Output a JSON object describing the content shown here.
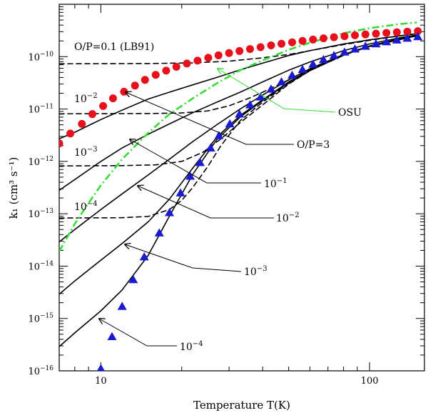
{
  "chart_data": {
    "type": "line",
    "title": "",
    "xlabel": "Temperature T(K)",
    "ylabel": "k₁ (cm³ s⁻¹)",
    "xscale": "log",
    "yscale": "log",
    "xlim": [
      7,
      160
    ],
    "ylim": [
      1e-16,
      1e-09
    ],
    "x_major_ticks": [
      {
        "value": 10,
        "label": "10"
      },
      {
        "value": 100,
        "label": "100"
      }
    ],
    "y_major_ticks": [
      {
        "value": 1e-16,
        "base": "10",
        "exp": "−16"
      },
      {
        "value": 1e-15,
        "base": "10",
        "exp": "−15"
      },
      {
        "value": 1e-14,
        "base": "10",
        "exp": "−14"
      },
      {
        "value": 1e-13,
        "base": "10",
        "exp": "−13"
      },
      {
        "value": 1e-12,
        "base": "10",
        "exp": "−12"
      },
      {
        "value": 1e-11,
        "base": "10",
        "exp": "−11"
      },
      {
        "value": 1e-10,
        "base": "10",
        "exp": "−10"
      }
    ],
    "series": [
      {
        "name": "total O/P=3",
        "style": "solid",
        "color": "#000000",
        "x": [
          7,
          8,
          10,
          12,
          15,
          18,
          22,
          27,
          33,
          40,
          50,
          60,
          80,
          100,
          130,
          150
        ],
        "y": [
          2.7e-12,
          3.6e-12,
          6.3e-12,
          9.5e-12,
          1.55e-11,
          2.1e-11,
          2.9e-11,
          4e-11,
          5.6e-11,
          7.5e-11,
          1.05e-10,
          1.3e-10,
          1.75e-10,
          2.1e-10,
          2.5e-10,
          2.75e-10
        ]
      },
      {
        "name": "total O/P=0.1",
        "style": "solid",
        "color": "#000000",
        "x": [
          7,
          8,
          10,
          12,
          15,
          18,
          22,
          27,
          33,
          40,
          50,
          60,
          80,
          100,
          130,
          150
        ],
        "y": [
          2.8e-13,
          4.5e-13,
          1e-12,
          1.8e-12,
          3.3e-12,
          5.2e-12,
          8.5e-12,
          1.35e-11,
          2.1e-11,
          3.3e-11,
          5.5e-11,
          7.9e-11,
          1.3e-10,
          1.75e-10,
          2.3e-10,
          2.6e-10
        ]
      },
      {
        "name": "total O/P=1e-2",
        "style": "solid",
        "color": "#000000",
        "x": [
          7,
          8,
          10,
          12,
          15,
          18,
          22,
          27,
          33,
          40,
          50,
          60,
          80,
          100,
          130,
          150
        ],
        "y": [
          2.9e-14,
          5e-14,
          1.2e-13,
          2.4e-13,
          5.5e-13,
          1.1e-12,
          2.4e-12,
          5e-12,
          1e-11,
          1.85e-11,
          3.6e-11,
          5.9e-11,
          1.1e-10,
          1.6e-10,
          2.2e-10,
          2.5e-10
        ]
      },
      {
        "name": "total O/P=1e-3",
        "style": "solid",
        "color": "#000000",
        "x": [
          7,
          8,
          10,
          12,
          15,
          18,
          22,
          27,
          33,
          40,
          50,
          60,
          80,
          100,
          130,
          150
        ],
        "y": [
          2.9e-15,
          5.2e-15,
          1.3e-14,
          2.7e-14,
          7e-14,
          1.9e-13,
          7.5e-13,
          2.9e-12,
          7.5e-12,
          1.5e-11,
          3.3e-11,
          5.6e-11,
          1.08e-10,
          1.58e-10,
          2.2e-10,
          2.5e-10
        ]
      },
      {
        "name": "total O/P=1e-4",
        "style": "solid",
        "color": "#000000",
        "x": [
          7,
          8,
          10,
          12,
          15,
          18,
          22,
          27,
          33,
          40,
          50,
          60,
          80,
          100,
          130,
          150
        ],
        "y": [
          2.9e-16,
          5.3e-16,
          1.4e-15,
          3.5e-15,
          1.6e-14,
          9e-14,
          5.7e-13,
          2.6e-12,
          7e-12,
          1.45e-11,
          3.2e-11,
          5.5e-11,
          1.07e-10,
          1.57e-10,
          2.2e-10,
          2.5e-10
        ]
      },
      {
        "name": "dashed O/P=0.1 (LB91)",
        "style": "dashed",
        "color": "#000000",
        "x": [
          7,
          15,
          22,
          30,
          40,
          50,
          60,
          80,
          100,
          130,
          150
        ],
        "y": [
          7.3e-11,
          7.4e-11,
          7.6e-11,
          8.2e-11,
          9.5e-11,
          1.1e-10,
          1.3e-10,
          1.7e-10,
          2.05e-10,
          2.5e-10,
          2.75e-10
        ]
      },
      {
        "name": "dashed 1e-2",
        "style": "dashed",
        "color": "#000000",
        "x": [
          7,
          15,
          20,
          25,
          30,
          35,
          40,
          50,
          60,
          80,
          100,
          150
        ],
        "y": [
          8.1e-12,
          8.2e-12,
          8.4e-12,
          9.2e-12,
          1.15e-11,
          1.55e-11,
          2.1e-11,
          3.6e-11,
          5.8e-11,
          1.1e-10,
          1.6e-10,
          2.5e-10
        ]
      },
      {
        "name": "dashed 1e-3",
        "style": "dashed",
        "color": "#000000",
        "x": [
          7,
          12,
          16,
          20,
          24,
          28,
          33,
          40,
          50,
          60,
          80,
          100,
          150
        ],
        "y": [
          8.2e-13,
          8.3e-13,
          8.6e-13,
          1e-12,
          1.5e-12,
          2.7e-12,
          5.5e-12,
          1.2e-11,
          3e-11,
          5.4e-11,
          1.07e-10,
          1.57e-10,
          2.5e-10
        ]
      },
      {
        "name": "dashed 1e-4",
        "style": "dashed",
        "color": "#000000",
        "x": [
          7,
          12,
          15,
          18,
          20,
          22,
          25,
          28,
          33,
          40,
          50,
          60,
          80,
          100,
          150
        ],
        "y": [
          8.3e-14,
          8.4e-14,
          8.9e-14,
          1.2e-13,
          1.8e-13,
          3.2e-13,
          8e-13,
          2e-12,
          6e-12,
          1.35e-11,
          3.1e-11,
          5.4e-11,
          1.06e-10,
          1.56e-10,
          2.5e-10
        ]
      },
      {
        "name": "OSU",
        "style": "dashdot",
        "color": "#33dd33",
        "x": [
          7,
          8,
          9,
          10,
          12,
          15,
          18,
          22,
          27,
          33,
          40,
          50,
          60,
          80,
          100,
          130,
          150
        ],
        "y": [
          1.9e-14,
          6.4e-14,
          1.6e-13,
          3.5e-13,
          1.1e-12,
          3.5e-12,
          8e-12,
          1.6e-11,
          3.1e-11,
          5.5e-11,
          8.5e-11,
          1.35e-10,
          1.85e-10,
          2.8e-10,
          3.5e-10,
          4.2e-10,
          4.5e-10
        ]
      }
    ],
    "markers": [
      {
        "name": "O/P=3 data",
        "shape": "circle",
        "color": "#e8101a",
        "x": [
          7,
          7.7,
          8.5,
          9.3,
          10.2,
          11.1,
          12.2,
          13.4,
          14.6,
          16,
          17.5,
          19.1,
          20.9,
          22.9,
          25.1,
          27.4,
          30,
          32.8,
          35.9,
          39.3,
          43,
          47,
          51.5,
          56.3,
          61.6,
          67.4,
          73.7,
          80.7,
          88.2,
          96.5,
          105.6,
          115.5,
          126.3,
          138.2,
          151.2
        ],
        "y": [
          2.2e-12,
          3.4e-12,
          5.2e-12,
          8e-12,
          1.14e-11,
          1.6e-11,
          2.14e-11,
          2.8e-11,
          3.6e-11,
          4.5e-11,
          5.4e-11,
          6.4e-11,
          7.4e-11,
          8.4e-11,
          9.5e-11,
          1.06e-10,
          1.17e-10,
          1.28e-10,
          1.4e-10,
          1.52e-10,
          1.64e-10,
          1.76e-10,
          1.88e-10,
          2e-10,
          2.12e-10,
          2.24e-10,
          2.35e-10,
          2.46e-10,
          2.56e-10,
          2.66e-10,
          2.75e-10,
          2.84e-10,
          2.92e-10,
          3e-10,
          3.07e-10
        ]
      },
      {
        "name": "para-H2 data",
        "shape": "triangle",
        "color": "#1a1ad0",
        "x": [
          10,
          11,
          12,
          13.2,
          14.5,
          16.5,
          18,
          19.8,
          21.5,
          23.4,
          25.6,
          27.5,
          30.2,
          32.8,
          35.9,
          39.3,
          43,
          47,
          51.5,
          56.3,
          61.6,
          67.4,
          73.7,
          80.7,
          88.2,
          96.5,
          105.6,
          115.5,
          126.3,
          138.2,
          151.2
        ],
        "y": [
          1.1e-16,
          4.5e-16,
          1.7e-15,
          5.5e-15,
          1.5e-14,
          4.3e-14,
          1.05e-13,
          2.5e-13,
          5.2e-13,
          9.5e-13,
          1.8e-12,
          3.1e-12,
          5.2e-12,
          8e-12,
          1.2e-11,
          1.7e-11,
          2.4e-11,
          3.3e-11,
          4.4e-11,
          5.7e-11,
          7.2e-11,
          8.8e-11,
          1.05e-10,
          1.22e-10,
          1.4e-10,
          1.58e-10,
          1.75e-10,
          1.92e-10,
          2.08e-10,
          2.25e-10,
          2.4e-10
        ]
      }
    ],
    "annotations": [
      {
        "name": "lb91",
        "text": "O/P=0.1 (LB91)"
      },
      {
        "name": "dash-1e-2",
        "base": "10",
        "exp": "−2"
      },
      {
        "name": "dash-1e-3",
        "base": "10",
        "exp": "−3"
      },
      {
        "name": "dash-1e-4",
        "base": "10",
        "exp": "−4"
      },
      {
        "name": "osu",
        "text": "OSU",
        "color": "#33dd33"
      },
      {
        "name": "op3",
        "text": "O/P=3"
      },
      {
        "name": "arrow-1e-1",
        "base": "10",
        "exp": "−1"
      },
      {
        "name": "arrow-1e-2",
        "base": "10",
        "exp": "−2"
      },
      {
        "name": "arrow-1e-3",
        "base": "10",
        "exp": "−3"
      },
      {
        "name": "arrow-1e-4",
        "base": "10",
        "exp": "−4"
      }
    ]
  }
}
